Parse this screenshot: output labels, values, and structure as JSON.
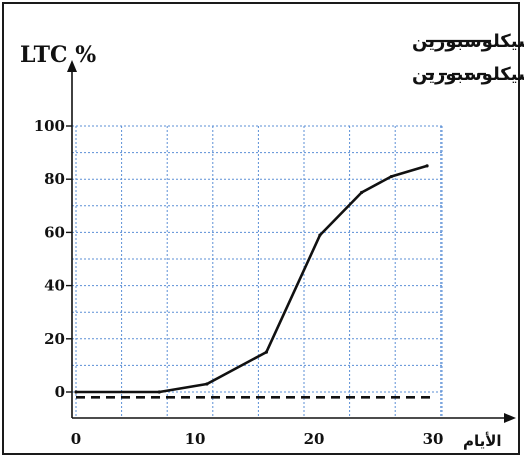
{
  "chart_data": {
    "type": "line",
    "ylabel": "LTC %",
    "xlabel": "الأيام",
    "x_ticks": [
      "0",
      "10",
      "20",
      "30"
    ],
    "y_ticks": [
      "0",
      "20",
      "40",
      "60",
      "80",
      "100"
    ],
    "xlim": [
      0,
      30
    ],
    "ylim": [
      0,
      100
    ],
    "grid": true,
    "legend_position": "top",
    "series": [
      {
        "name": "في غياب السيكلوسبورين",
        "style": "solid",
        "color": "#111111",
        "x": [
          0,
          7,
          11,
          16,
          20.5,
          24,
          26.5,
          29.5
        ],
        "y": [
          0,
          0,
          3,
          15,
          59,
          75,
          81,
          85
        ]
      },
      {
        "name": "في وجود السيكلوسبورين",
        "style": "dashed",
        "color": "#111111",
        "x": [
          0,
          30
        ],
        "y": [
          -2,
          -2
        ]
      }
    ]
  },
  "colors": {
    "grid": "#5b8fd6",
    "ink": "#111111"
  }
}
